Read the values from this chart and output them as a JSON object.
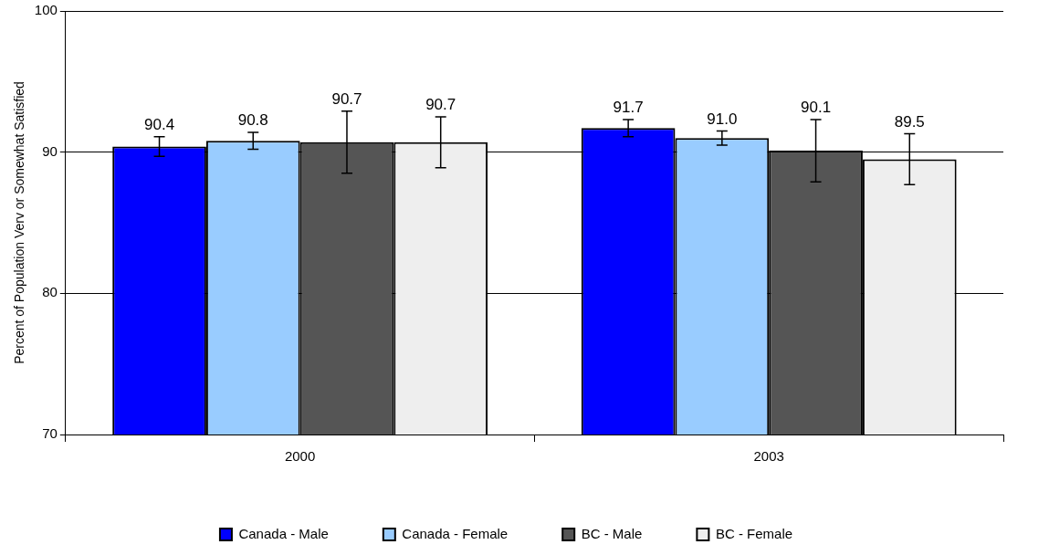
{
  "chart_data": {
    "type": "bar",
    "ylabel": "Percent of Population Verv or Somewhat Satisfied",
    "categories": [
      "2000",
      "2003"
    ],
    "series": [
      {
        "name": "Canada - Male",
        "color": "#0000ff",
        "values": [
          90.4,
          91.7
        ],
        "errors": [
          0.7,
          0.6
        ],
        "value_labels": [
          "90.4",
          "91.7"
        ]
      },
      {
        "name": "Canada - Female",
        "color": "#99ccff",
        "values": [
          90.8,
          91.0
        ],
        "errors": [
          0.6,
          0.5
        ],
        "value_labels": [
          "90.8",
          "91.0"
        ]
      },
      {
        "name": "BC - Male",
        "color": "#555555",
        "values": [
          90.7,
          90.1
        ],
        "errors": [
          2.2,
          2.2
        ],
        "value_labels": [
          "90.7",
          "90.1"
        ]
      },
      {
        "name": "BC - Female",
        "color": "#eeeeee",
        "values": [
          90.7,
          89.5
        ],
        "errors": [
          1.8,
          1.8
        ],
        "value_labels": [
          "90.7",
          "89.5"
        ]
      }
    ],
    "ylim": [
      70,
      100
    ],
    "yticks": [
      70,
      80,
      90,
      100
    ],
    "grid": "y",
    "legend": "bottom"
  }
}
